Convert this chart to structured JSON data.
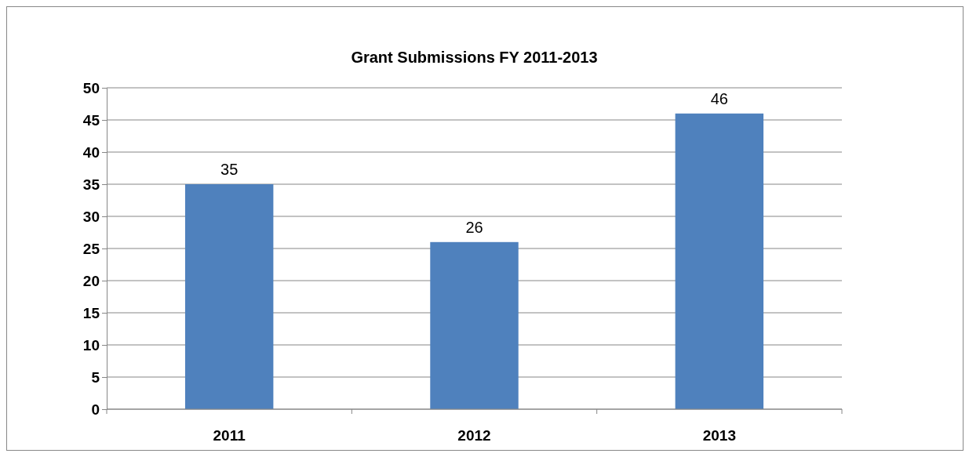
{
  "chart_data": {
    "type": "bar",
    "title": "Grant Submissions FY 2011-2013",
    "categories": [
      "2011",
      "2012",
      "2013"
    ],
    "values": [
      35,
      26,
      46
    ],
    "color": "#4f81bd",
    "ylim": [
      0,
      50
    ],
    "yticks": [
      0,
      5,
      10,
      15,
      20,
      25,
      30,
      35,
      40,
      45,
      50
    ],
    "grid": "y",
    "data_labels": true
  }
}
